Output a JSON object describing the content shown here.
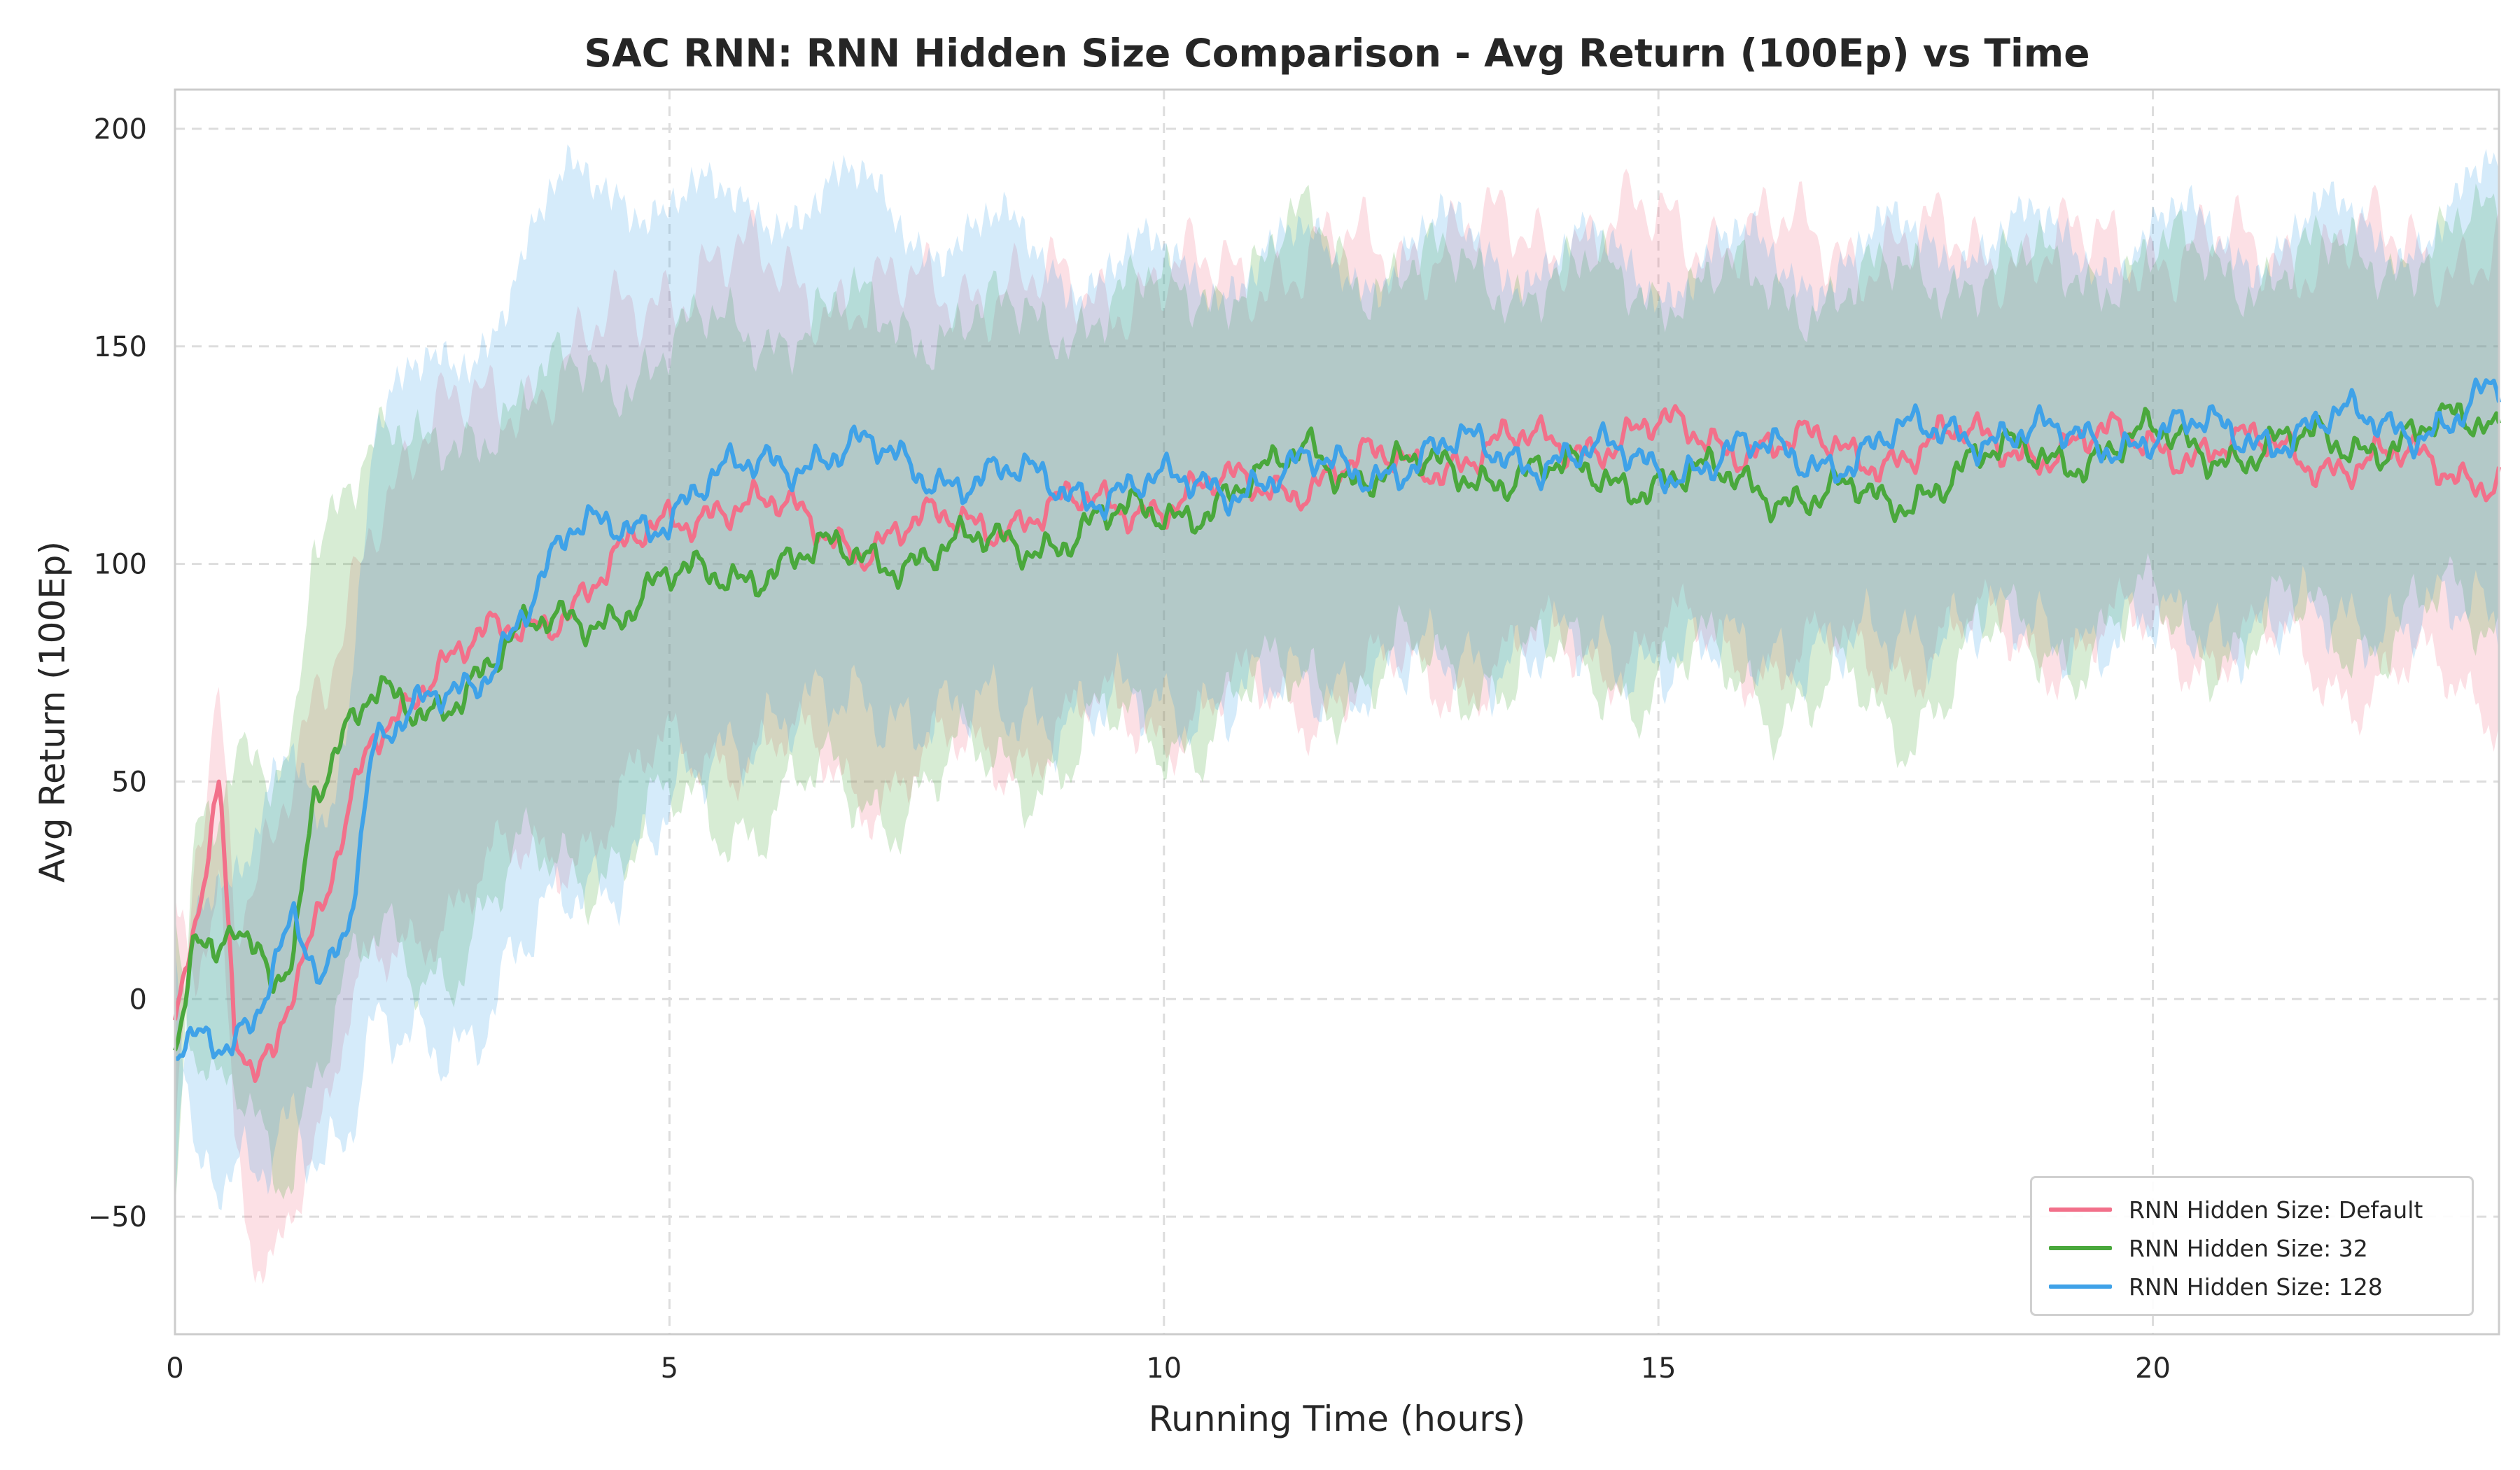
{
  "chart_data": {
    "type": "line",
    "title": "SAC RNN: RNN Hidden Size Comparison - Avg Return (100Ep) vs Time",
    "xlabel": "Running Time (hours)",
    "ylabel": "Avg Return (100Ep)",
    "xlim": [
      0,
      23.5
    ],
    "ylim": [
      -77,
      209
    ],
    "xticks": [
      0,
      5,
      10,
      15,
      20
    ],
    "yticks": [
      -50,
      0,
      50,
      100,
      150,
      200
    ],
    "grid": true,
    "legend_position": "bottom-right",
    "shaded_band": "spread around each series mean",
    "series": [
      {
        "name": "RNN Hidden Size: Default",
        "color": "#f2708a",
        "x": [
          0,
          0.2,
          0.45,
          0.6,
          0.8,
          1.0,
          1.2,
          1.5,
          1.75,
          2.0,
          2.5,
          3.0,
          3.5,
          4.0,
          4.5,
          5.0,
          5.5,
          6.0,
          7.0,
          8.0,
          9.0,
          10.0,
          11.0,
          12.0,
          13.0,
          14.0,
          15.0,
          16.0,
          17.0,
          18.0,
          19.0,
          20.0,
          21.0,
          22.0,
          23.5
        ],
        "values": [
          -10,
          12,
          50,
          -8,
          -12,
          -10,
          5,
          18,
          40,
          60,
          75,
          80,
          85,
          92,
          100,
          110,
          115,
          112,
          105,
          110,
          112,
          115,
          118,
          122,
          125,
          128,
          130,
          128,
          125,
          128,
          127,
          128,
          126,
          124,
          121
        ],
        "band": [
          -35,
          20,
          25,
          30,
          45,
          45,
          45,
          48,
          50,
          55,
          55,
          55,
          55,
          55,
          55,
          55,
          55,
          55,
          55,
          55,
          50,
          50,
          50,
          50,
          50,
          48,
          48,
          48,
          48,
          45,
          45,
          45,
          45,
          50,
          50
        ]
      },
      {
        "name": "RNN Hidden Size: 32",
        "color": "#4aa83c",
        "x": [
          0,
          0.2,
          0.4,
          0.6,
          0.8,
          1.0,
          1.2,
          1.4,
          1.75,
          2.0,
          2.5,
          3.0,
          3.5,
          4.0,
          4.5,
          5.0,
          5.5,
          6.0,
          7.0,
          8.0,
          9.0,
          10.0,
          11.0,
          11.5,
          12.0,
          13.0,
          14.0,
          15.0,
          16.0,
          17.0,
          17.3,
          18.0,
          19.0,
          20.0,
          21.0,
          22.0,
          23.5
        ],
        "values": [
          -12,
          18,
          5,
          15,
          8,
          5,
          12,
          50,
          62,
          68,
          65,
          75,
          82,
          88,
          90,
          95,
          98,
          100,
          102,
          103,
          107,
          112,
          118,
          128,
          120,
          122,
          120,
          120,
          118,
          115,
          112,
          123,
          125,
          128,
          126,
          128,
          132
        ],
        "band": [
          -30,
          30,
          35,
          40,
          40,
          40,
          45,
          60,
          60,
          60,
          58,
          58,
          55,
          55,
          55,
          55,
          55,
          55,
          55,
          52,
          50,
          50,
          50,
          50,
          48,
          45,
          45,
          45,
          45,
          48,
          52,
          45,
          42,
          42,
          42,
          42,
          45
        ]
      },
      {
        "name": "RNN Hidden Size: 128",
        "color": "#3fa2e8",
        "x": [
          0,
          0.2,
          0.5,
          0.8,
          1.0,
          1.2,
          1.5,
          1.75,
          2.0,
          2.5,
          3.0,
          3.5,
          4.0,
          4.5,
          5.0,
          5.5,
          6.0,
          7.0,
          8.0,
          9.0,
          10.0,
          11.0,
          12.0,
          13.0,
          14.0,
          15.0,
          16.0,
          17.0,
          18.0,
          19.0,
          20.0,
          21.0,
          22.0,
          23.0,
          23.5
        ],
        "values": [
          -10,
          -5,
          -8,
          -8,
          5,
          15,
          5,
          20,
          60,
          65,
          72,
          90,
          105,
          110,
          112,
          118,
          125,
          125,
          120,
          118,
          117,
          120,
          122,
          126,
          125,
          123,
          125,
          125,
          132,
          128,
          130,
          130,
          132,
          133,
          138
        ],
        "band": [
          -30,
          35,
          35,
          35,
          40,
          40,
          40,
          50,
          70,
          75,
          80,
          80,
          80,
          80,
          70,
          62,
          60,
          58,
          55,
          52,
          50,
          50,
          48,
          48,
          45,
          45,
          45,
          45,
          45,
          45,
          45,
          45,
          45,
          45,
          50
        ]
      }
    ]
  }
}
